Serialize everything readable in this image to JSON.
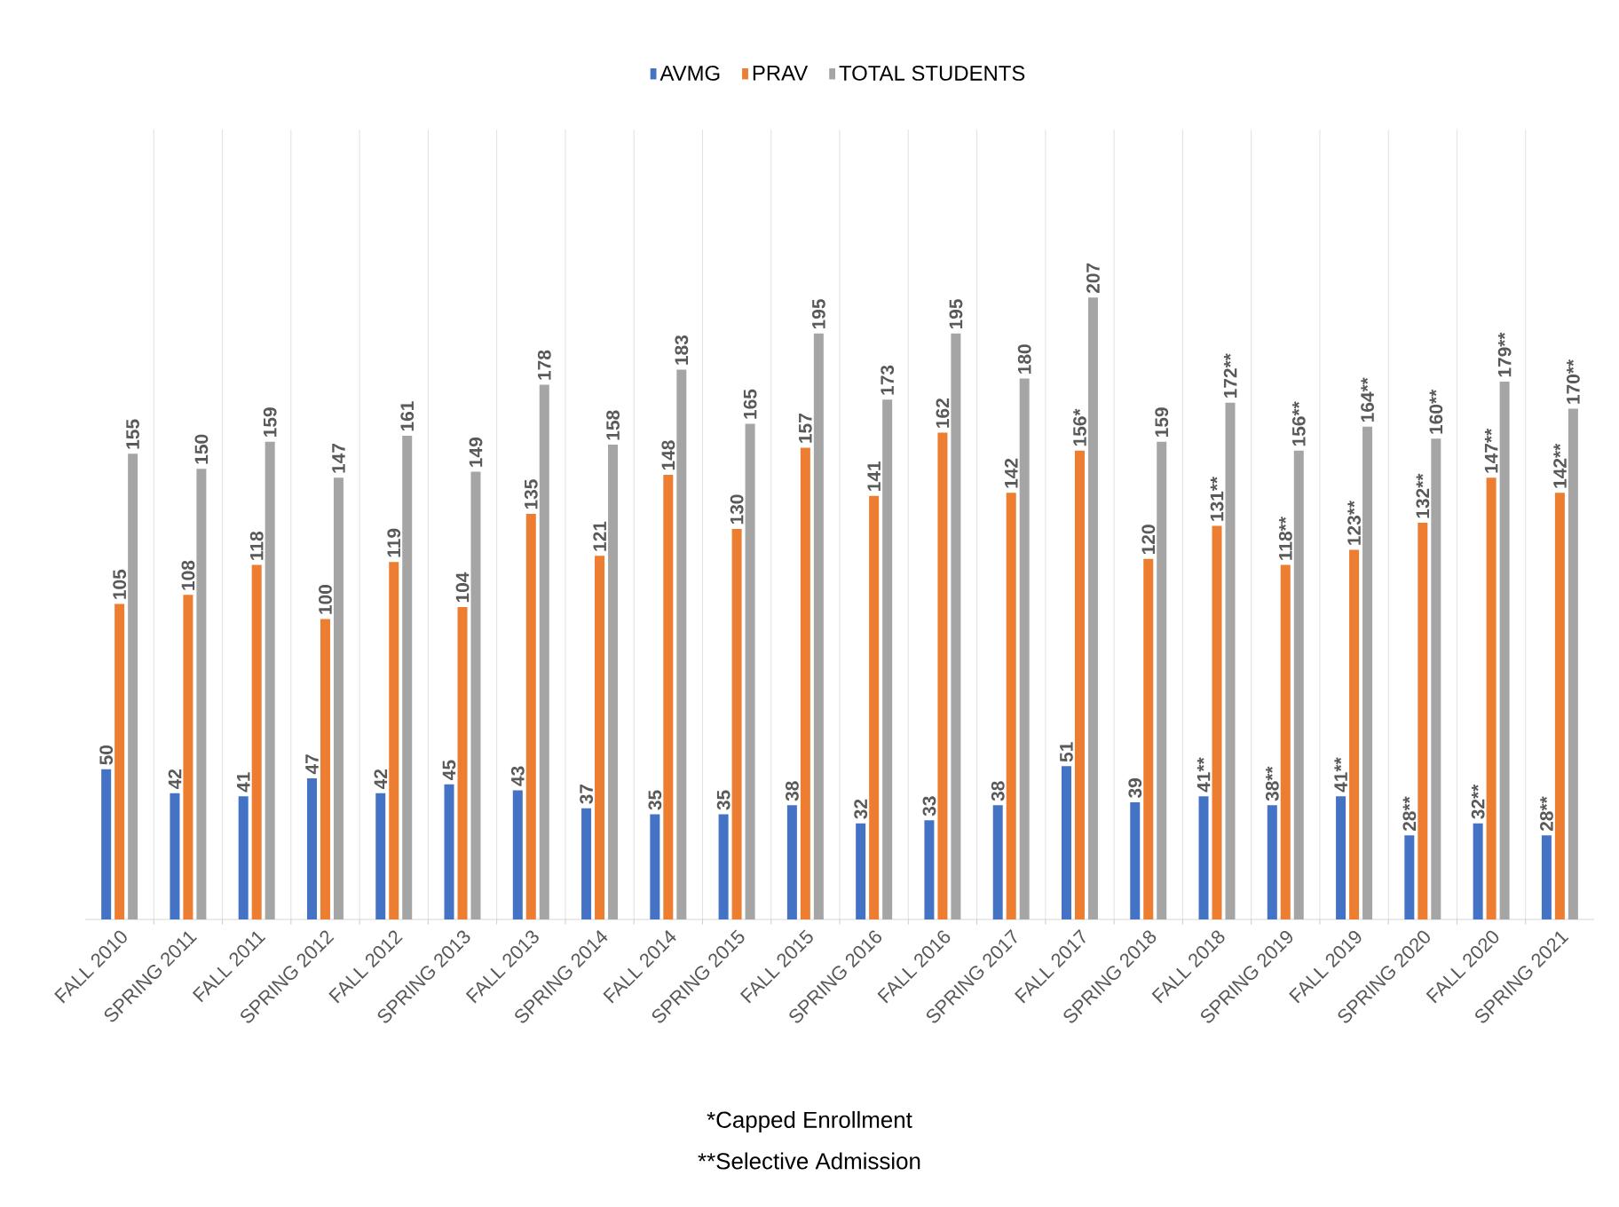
{
  "chart_data": {
    "type": "bar",
    "categories": [
      "FALL 2010",
      "SPRING 2011",
      "FALL 2011",
      "SPRING 2012",
      "FALL 2012",
      "SPRING 2013",
      "FALL 2013",
      "SPRING 2014",
      "FALL 2014",
      "SPRING 2015",
      "FALL 2015",
      "SPRING 2016",
      "FALL 2016",
      "SPRING 2017",
      "FALL 2017",
      "SPRING 2018",
      "FALL 2018",
      "SPRING 2019",
      "FALL 2019",
      "SPRING 2020",
      "FALL 2020",
      "SPRING 2021"
    ],
    "series": [
      {
        "name": "AVMG",
        "color": "#4472c4",
        "values": [
          50,
          42,
          41,
          47,
          42,
          45,
          43,
          37,
          35,
          35,
          38,
          32,
          33,
          38,
          51,
          39,
          41,
          38,
          41,
          28,
          32,
          28
        ],
        "value_labels": [
          "50",
          "42",
          "41",
          "47",
          "42",
          "45",
          "43",
          "37",
          "35",
          "35",
          "38",
          "32",
          "33",
          "38",
          "51",
          "39",
          "41**",
          "38**",
          "41**",
          "28**",
          "32**",
          "28**"
        ]
      },
      {
        "name": "PRAV",
        "color": "#ed7d31",
        "values": [
          105,
          108,
          118,
          100,
          119,
          104,
          135,
          121,
          148,
          130,
          157,
          141,
          162,
          142,
          156,
          120,
          131,
          118,
          123,
          132,
          147,
          142
        ],
        "value_labels": [
          "105",
          "108",
          "118",
          "100",
          "119",
          "104",
          "135",
          "121",
          "148",
          "130",
          "157",
          "141",
          "162",
          "142",
          "156*",
          "120",
          "131**",
          "118**",
          "123**",
          "132**",
          "147**",
          "142**"
        ]
      },
      {
        "name": "TOTAL STUDENTS",
        "color": "#a5a5a5",
        "values": [
          155,
          150,
          159,
          147,
          161,
          149,
          178,
          158,
          183,
          165,
          195,
          173,
          195,
          180,
          207,
          159,
          172,
          156,
          164,
          160,
          179,
          170
        ],
        "value_labels": [
          "155",
          "150",
          "159",
          "147",
          "161",
          "149",
          "178",
          "158",
          "183",
          "165",
          "195",
          "173",
          "195",
          "180",
          "207",
          "159",
          "172**",
          "156**",
          "164**",
          "160**",
          "179**",
          "170**"
        ]
      }
    ],
    "grid": "x",
    "legend": "top",
    "annotations": [
      "*Capped Enrollment",
      "**Selective Admission"
    ]
  }
}
